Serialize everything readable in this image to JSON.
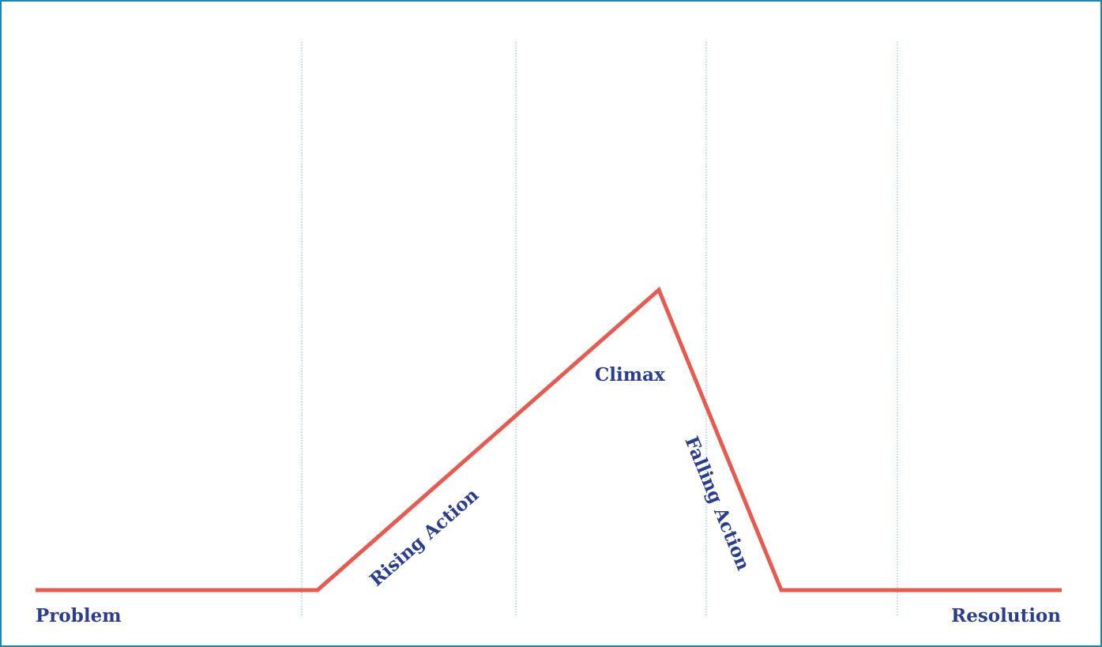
{
  "labels": {
    "problem": "Problem",
    "rising_action": "Rising Action",
    "climax": "Climax",
    "falling_action": "Falling Action",
    "resolution": "Resolution"
  },
  "colors": {
    "border": "#1e86b4",
    "arc_line": "#e85a4f",
    "label_text": "#2b3d91",
    "guide_lines": "#6fb3d6"
  }
}
